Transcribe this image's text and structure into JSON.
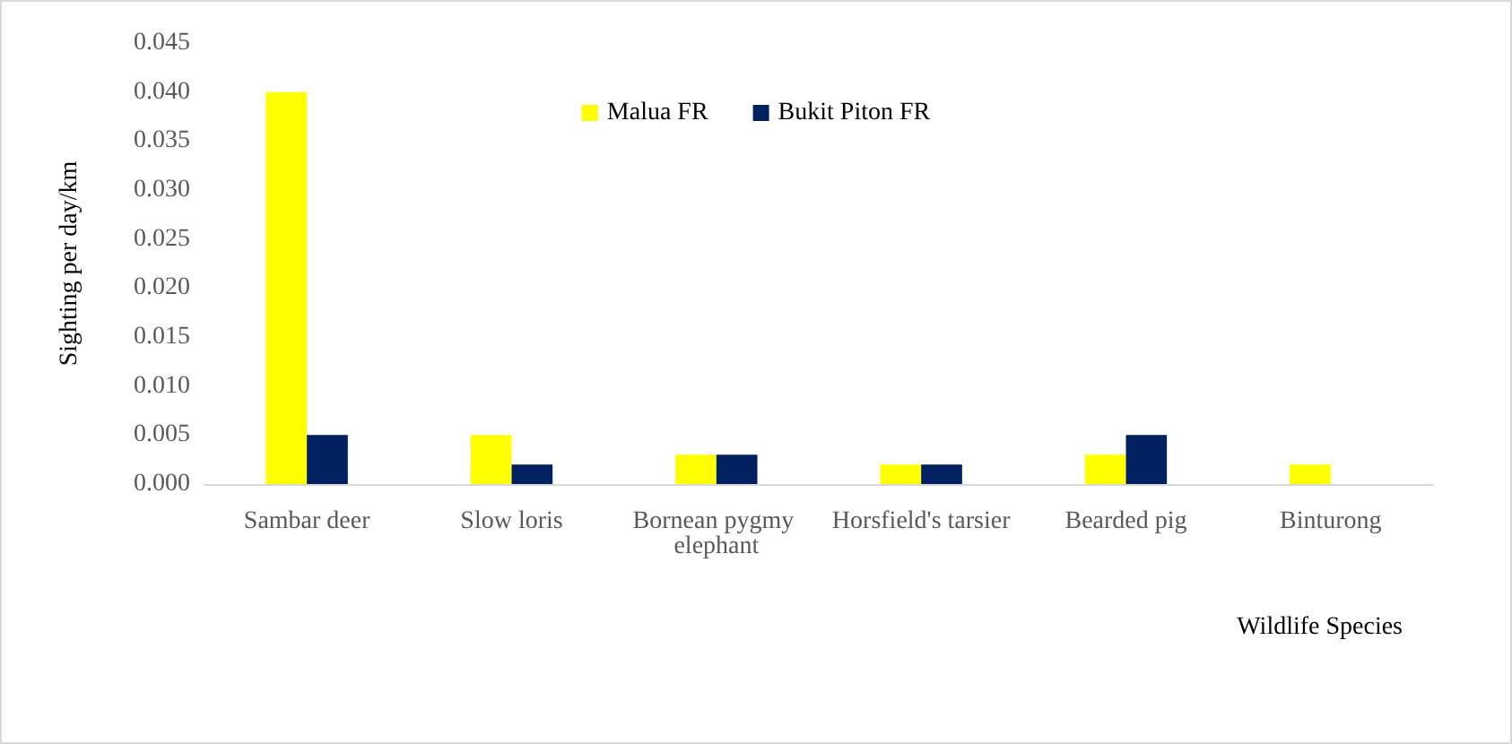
{
  "chart_data": {
    "type": "bar",
    "xlabel": "Wildlife Species",
    "ylabel": "Sighting per day/km",
    "categories": [
      "Sambar deer",
      "Slow loris",
      "Bornean pygmy elephant",
      "Horsfield's tarsier",
      "Bearded pig",
      "Binturong"
    ],
    "series": [
      {
        "name": "Malua FR",
        "color": "#ffff00",
        "values": [
          0.04,
          0.005,
          0.003,
          0.002,
          0.003,
          0.002
        ]
      },
      {
        "name": "Bukit Piton FR",
        "color": "#002060",
        "values": [
          0.005,
          0.002,
          0.003,
          0.002,
          0.005,
          0
        ]
      }
    ],
    "ylim": [
      0,
      0.045
    ],
    "yticks": [
      {
        "value": 0,
        "label": "0.000"
      },
      {
        "value": 0.005,
        "label": "0.005"
      },
      {
        "value": 0.01,
        "label": "0.010"
      },
      {
        "value": 0.015,
        "label": "0.015"
      },
      {
        "value": 0.02,
        "label": "0.020"
      },
      {
        "value": 0.025,
        "label": "0.025"
      },
      {
        "value": 0.03,
        "label": "0.030"
      },
      {
        "value": 0.035,
        "label": "0.035"
      },
      {
        "value": 0.04,
        "label": "0.040"
      },
      {
        "value": 0.045,
        "label": "0.045"
      }
    ],
    "grid": false,
    "legend": "top"
  }
}
